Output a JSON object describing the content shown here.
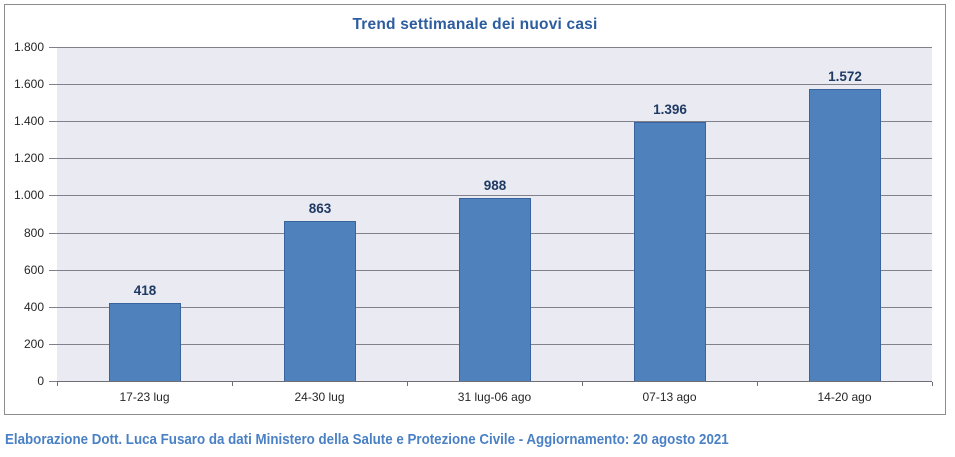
{
  "chart_data": {
    "type": "bar",
    "title": "Trend settimanale dei nuovi casi",
    "xlabel": "",
    "ylabel": "",
    "categories": [
      "17-23 lug",
      "24-30 lug",
      "31 lug-06 ago",
      "07-13 ago",
      "14-20 ago"
    ],
    "values": [
      418,
      863,
      988,
      1396,
      1572
    ],
    "value_labels": [
      "418",
      "863",
      "988",
      "1.396",
      "1.572"
    ],
    "ylim": [
      0,
      1800
    ],
    "ytick_interval": 200,
    "yticks": [
      {
        "value": 0,
        "label": "0"
      },
      {
        "value": 200,
        "label": "200"
      },
      {
        "value": 400,
        "label": "400"
      },
      {
        "value": 600,
        "label": "600"
      },
      {
        "value": 800,
        "label": "800"
      },
      {
        "value": 1000,
        "label": "1.000"
      },
      {
        "value": 1200,
        "label": "1.200"
      },
      {
        "value": 1400,
        "label": "1.400"
      },
      {
        "value": 1600,
        "label": "1.600"
      },
      {
        "value": 1800,
        "label": "1.800"
      }
    ],
    "grid": true,
    "legend": "none",
    "colors": {
      "bar_fill": "#4F81BD",
      "bar_border": "#38639D",
      "plot_bg": "#E9EAF2",
      "gridline": "#81818B",
      "axis_line": "#6E6E74",
      "frame_border": "#8C8C8C",
      "title_text": "#2D5D9E",
      "value_label_text": "#1F3A63",
      "tick_text": "#262626",
      "footer_text": "#4A80C4"
    }
  },
  "footer": {
    "text": "Elaborazione Dott. Luca Fusaro da dati Ministero della Salute e Protezione Civile - Aggiornamento: 20 agosto 2021"
  }
}
